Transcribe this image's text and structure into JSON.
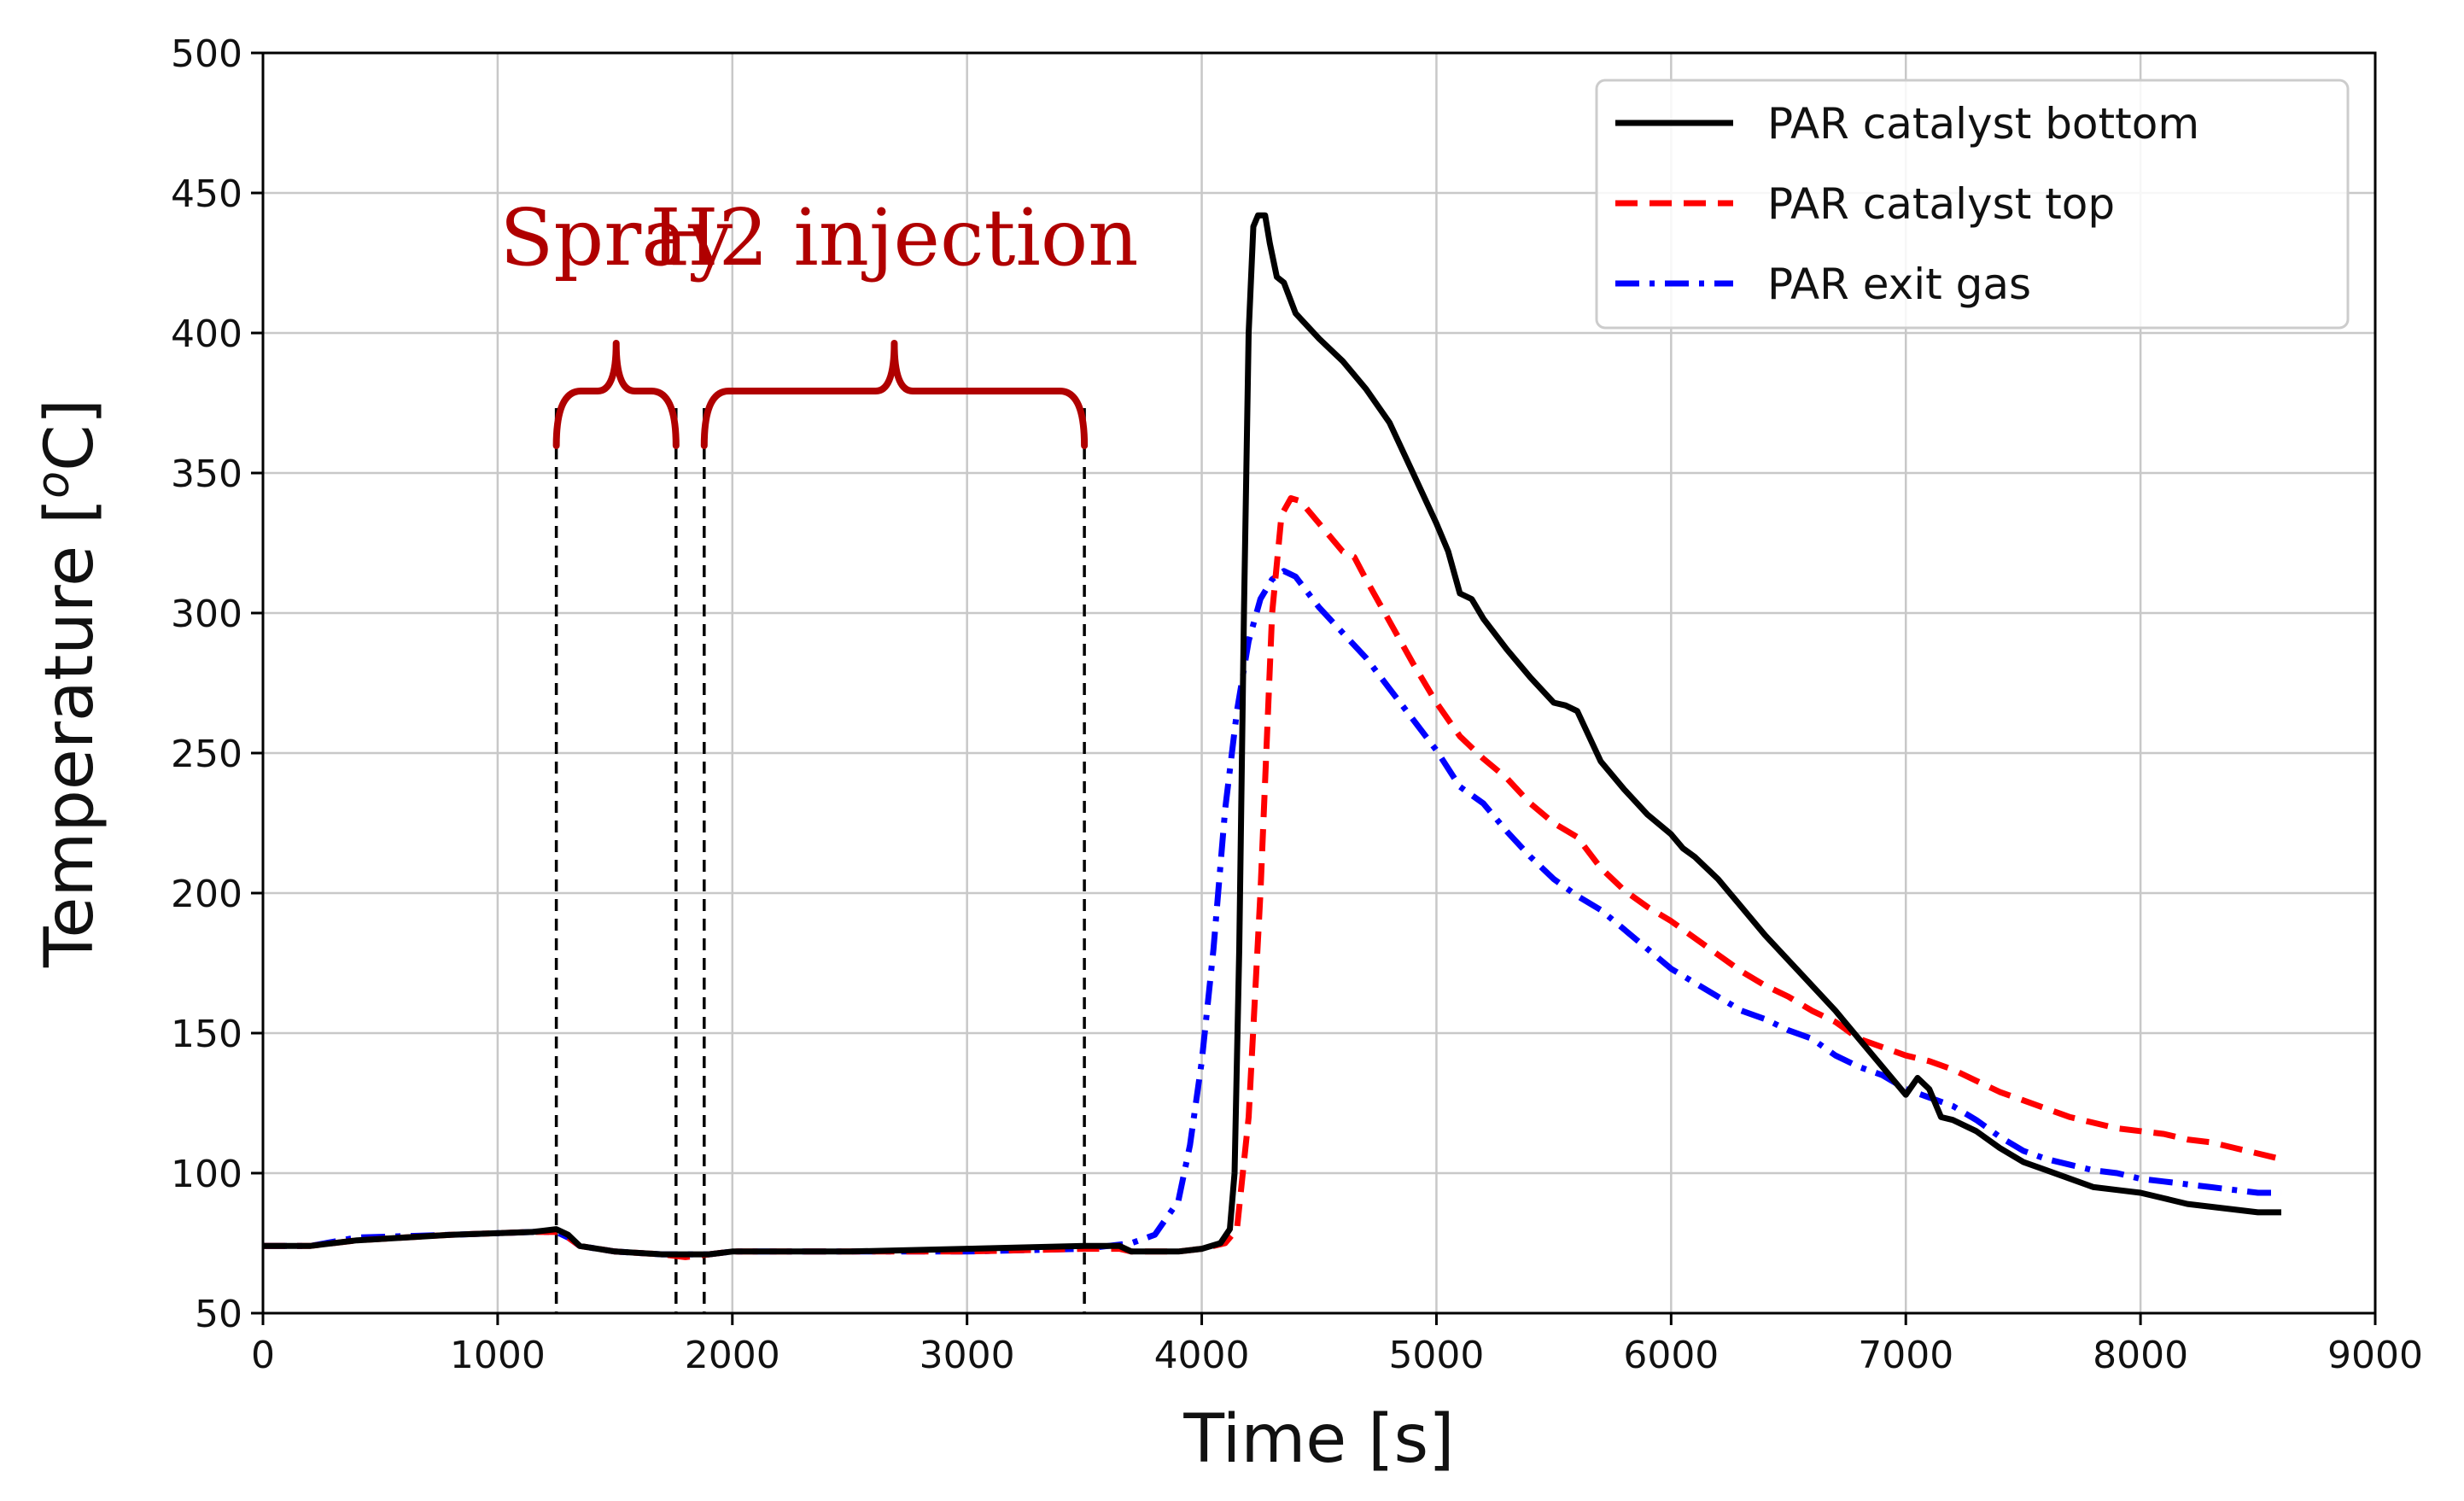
{
  "chart_data": {
    "type": "line",
    "xlabel": "Time [s]",
    "ylabel": "Temperature [",
    "ylabel_sup": "o",
    "ylabel_tail": "C]",
    "xlim": [
      0,
      9000
    ],
    "ylim": [
      50,
      500
    ],
    "xticks": [
      0,
      1000,
      2000,
      3000,
      4000,
      5000,
      6000,
      7000,
      8000,
      9000
    ],
    "yticks": [
      50,
      100,
      150,
      200,
      250,
      300,
      350,
      400,
      450,
      500
    ],
    "xtick_labels": [
      "0",
      "1000",
      "2000",
      "3000",
      "4000",
      "5000",
      "6000",
      "7000",
      "8000",
      "9000"
    ],
    "ytick_labels": [
      "50",
      "100",
      "150",
      "200",
      "250",
      "300",
      "350",
      "400",
      "450",
      "500"
    ],
    "grid": true,
    "legend_position": "top-right",
    "series": [
      {
        "name": "PAR catalyst bottom",
        "color": "#000000",
        "style": "solid",
        "points": [
          [
            0,
            74
          ],
          [
            200,
            74
          ],
          [
            400,
            76
          ],
          [
            800,
            78
          ],
          [
            1150,
            79
          ],
          [
            1250,
            80
          ],
          [
            1300,
            78
          ],
          [
            1350,
            74
          ],
          [
            1500,
            72
          ],
          [
            1700,
            71
          ],
          [
            1800,
            71
          ],
          [
            1900,
            71
          ],
          [
            2000,
            72
          ],
          [
            2500,
            72
          ],
          [
            3000,
            73
          ],
          [
            3500,
            74
          ],
          [
            3650,
            74
          ],
          [
            3700,
            72
          ],
          [
            3900,
            72
          ],
          [
            4000,
            73
          ],
          [
            4080,
            75
          ],
          [
            4120,
            80
          ],
          [
            4140,
            100
          ],
          [
            4160,
            180
          ],
          [
            4180,
            300
          ],
          [
            4200,
            400
          ],
          [
            4220,
            438
          ],
          [
            4240,
            442
          ],
          [
            4270,
            442
          ],
          [
            4290,
            432
          ],
          [
            4320,
            420
          ],
          [
            4350,
            418
          ],
          [
            4400,
            407
          ],
          [
            4500,
            398
          ],
          [
            4600,
            390
          ],
          [
            4700,
            380
          ],
          [
            4800,
            368
          ],
          [
            4900,
            350
          ],
          [
            5000,
            332
          ],
          [
            5050,
            322
          ],
          [
            5100,
            307
          ],
          [
            5150,
            305
          ],
          [
            5200,
            298
          ],
          [
            5300,
            287
          ],
          [
            5400,
            277
          ],
          [
            5500,
            268
          ],
          [
            5550,
            267
          ],
          [
            5600,
            265
          ],
          [
            5700,
            247
          ],
          [
            5800,
            237
          ],
          [
            5900,
            228
          ],
          [
            6000,
            221
          ],
          [
            6050,
            216
          ],
          [
            6100,
            213
          ],
          [
            6200,
            205
          ],
          [
            6300,
            195
          ],
          [
            6400,
            185
          ],
          [
            6500,
            176
          ],
          [
            6600,
            167
          ],
          [
            6700,
            158
          ],
          [
            6800,
            148
          ],
          [
            6900,
            138
          ],
          [
            7000,
            128
          ],
          [
            7050,
            134
          ],
          [
            7100,
            130
          ],
          [
            7150,
            120
          ],
          [
            7200,
            119
          ],
          [
            7300,
            115
          ],
          [
            7400,
            109
          ],
          [
            7500,
            104
          ],
          [
            7600,
            101
          ],
          [
            7700,
            98
          ],
          [
            7800,
            95
          ],
          [
            7900,
            94
          ],
          [
            8000,
            93
          ],
          [
            8100,
            91
          ],
          [
            8200,
            89
          ],
          [
            8300,
            88
          ],
          [
            8400,
            87
          ],
          [
            8500,
            86
          ],
          [
            8600,
            86
          ]
        ]
      },
      {
        "name": "PAR catalyst top",
        "color": "#ff0000",
        "style": "dashed",
        "points": [
          [
            0,
            74
          ],
          [
            200,
            74
          ],
          [
            400,
            76
          ],
          [
            800,
            78
          ],
          [
            1150,
            79
          ],
          [
            1250,
            79
          ],
          [
            1300,
            77
          ],
          [
            1350,
            74
          ],
          [
            1500,
            72
          ],
          [
            1700,
            71
          ],
          [
            1800,
            70
          ],
          [
            1900,
            71
          ],
          [
            2000,
            72
          ],
          [
            2500,
            72
          ],
          [
            3000,
            72
          ],
          [
            3500,
            73
          ],
          [
            3650,
            73
          ],
          [
            3700,
            72
          ],
          [
            3900,
            72
          ],
          [
            4000,
            73
          ],
          [
            4100,
            75
          ],
          [
            4150,
            80
          ],
          [
            4200,
            120
          ],
          [
            4250,
            200
          ],
          [
            4300,
            300
          ],
          [
            4340,
            335
          ],
          [
            4380,
            341
          ],
          [
            4420,
            340
          ],
          [
            4500,
            332
          ],
          [
            4600,
            322
          ],
          [
            4650,
            320
          ],
          [
            4700,
            312
          ],
          [
            4800,
            297
          ],
          [
            4900,
            282
          ],
          [
            5000,
            268
          ],
          [
            5100,
            256
          ],
          [
            5200,
            248
          ],
          [
            5300,
            241
          ],
          [
            5400,
            232
          ],
          [
            5500,
            225
          ],
          [
            5600,
            220
          ],
          [
            5700,
            209
          ],
          [
            5800,
            201
          ],
          [
            5900,
            195
          ],
          [
            6000,
            190
          ],
          [
            6100,
            184
          ],
          [
            6200,
            178
          ],
          [
            6300,
            172
          ],
          [
            6400,
            167
          ],
          [
            6500,
            163
          ],
          [
            6600,
            158
          ],
          [
            6700,
            154
          ],
          [
            6800,
            148
          ],
          [
            6900,
            145
          ],
          [
            7000,
            142
          ],
          [
            7100,
            140
          ],
          [
            7200,
            137
          ],
          [
            7300,
            133
          ],
          [
            7400,
            129
          ],
          [
            7500,
            126
          ],
          [
            7600,
            123
          ],
          [
            7700,
            120
          ],
          [
            7800,
            118
          ],
          [
            7900,
            116
          ],
          [
            8000,
            115
          ],
          [
            8100,
            114
          ],
          [
            8200,
            112
          ],
          [
            8300,
            111
          ],
          [
            8400,
            109
          ],
          [
            8500,
            107
          ],
          [
            8600,
            105
          ]
        ]
      },
      {
        "name": "PAR exit gas",
        "color": "#0000ff",
        "style": "dashdot",
        "points": [
          [
            0,
            74
          ],
          [
            200,
            74
          ],
          [
            400,
            77
          ],
          [
            800,
            78
          ],
          [
            1150,
            79
          ],
          [
            1250,
            79
          ],
          [
            1300,
            77
          ],
          [
            1350,
            74
          ],
          [
            1500,
            72
          ],
          [
            1700,
            71
          ],
          [
            1800,
            71
          ],
          [
            1900,
            71
          ],
          [
            2000,
            72
          ],
          [
            2500,
            72
          ],
          [
            3000,
            72
          ],
          [
            3500,
            73
          ],
          [
            3600,
            74
          ],
          [
            3700,
            75
          ],
          [
            3800,
            78
          ],
          [
            3900,
            90
          ],
          [
            3950,
            110
          ],
          [
            4000,
            140
          ],
          [
            4050,
            180
          ],
          [
            4100,
            230
          ],
          [
            4150,
            265
          ],
          [
            4200,
            290
          ],
          [
            4250,
            305
          ],
          [
            4300,
            312
          ],
          [
            4350,
            315
          ],
          [
            4400,
            313
          ],
          [
            4500,
            302
          ],
          [
            4600,
            293
          ],
          [
            4700,
            284
          ],
          [
            4800,
            273
          ],
          [
            4900,
            262
          ],
          [
            5000,
            251
          ],
          [
            5100,
            238
          ],
          [
            5200,
            232
          ],
          [
            5300,
            222
          ],
          [
            5400,
            213
          ],
          [
            5500,
            205
          ],
          [
            5600,
            199
          ],
          [
            5700,
            194
          ],
          [
            5800,
            187
          ],
          [
            5900,
            180
          ],
          [
            6000,
            173
          ],
          [
            6100,
            168
          ],
          [
            6200,
            163
          ],
          [
            6300,
            158
          ],
          [
            6400,
            155
          ],
          [
            6500,
            151
          ],
          [
            6600,
            148
          ],
          [
            6700,
            142
          ],
          [
            6800,
            138
          ],
          [
            6900,
            135
          ],
          [
            7000,
            130
          ],
          [
            7100,
            127
          ],
          [
            7200,
            124
          ],
          [
            7300,
            119
          ],
          [
            7400,
            113
          ],
          [
            7500,
            108
          ],
          [
            7600,
            105
          ],
          [
            7700,
            103
          ],
          [
            7800,
            101
          ],
          [
            7900,
            100
          ],
          [
            8000,
            98
          ],
          [
            8100,
            97
          ],
          [
            8200,
            96
          ],
          [
            8300,
            95
          ],
          [
            8400,
            94
          ],
          [
            8500,
            93
          ],
          [
            8600,
            93
          ]
        ]
      }
    ],
    "annotations": [
      {
        "text": "Spray",
        "x_start": 1250,
        "x_end": 1760,
        "color": "#b00000"
      },
      {
        "text": "H2 injection",
        "x_start": 1880,
        "x_end": 3500,
        "color": "#b00000"
      }
    ]
  }
}
